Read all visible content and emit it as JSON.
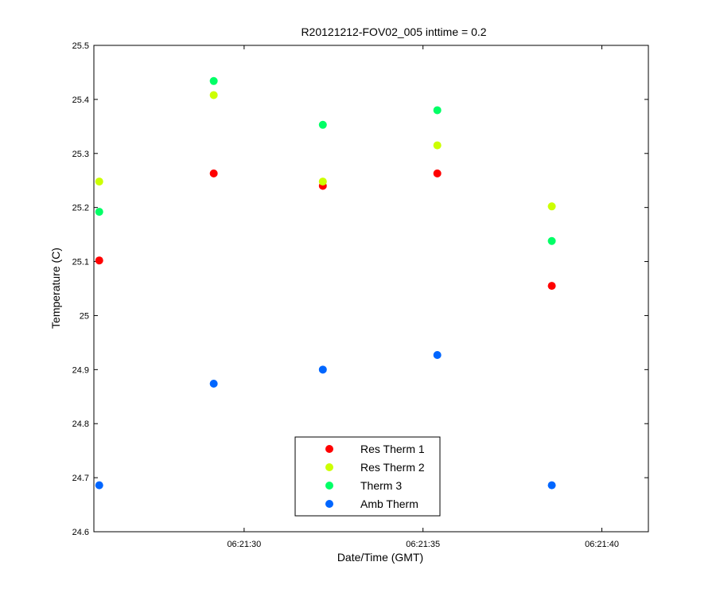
{
  "chart_data": {
    "type": "scatter",
    "title": "R20121212-FOV02_005 inttime = 0.2",
    "xlabel": "Date/Time (GMT)",
    "ylabel": "Temperature (C)",
    "x_unit": "seconds past 06:21:00",
    "xlim": [
      25.8,
      41.3
    ],
    "ylim": [
      24.6,
      25.5
    ],
    "x_ticks": [
      {
        "value": 30,
        "label": "06:21:30"
      },
      {
        "value": 35,
        "label": "06:21:35"
      },
      {
        "value": 40,
        "label": "06:21:40"
      }
    ],
    "y_ticks": [
      {
        "value": 24.6,
        "label": "24.6"
      },
      {
        "value": 24.7,
        "label": "24.7"
      },
      {
        "value": 24.8,
        "label": "24.8"
      },
      {
        "value": 24.9,
        "label": "24.9"
      },
      {
        "value": 25.0,
        "label": "25"
      },
      {
        "value": 25.1,
        "label": "25.1"
      },
      {
        "value": 25.2,
        "label": "25.2"
      },
      {
        "value": 25.3,
        "label": "25.3"
      },
      {
        "value": 25.4,
        "label": "25.4"
      },
      {
        "value": 25.5,
        "label": "25.5"
      }
    ],
    "x": [
      25.95,
      29.15,
      32.2,
      35.4,
      38.6
    ],
    "series": [
      {
        "name": "Res Therm 1",
        "color": "#ff0000",
        "values": [
          25.102,
          25.263,
          25.24,
          25.263,
          25.055
        ]
      },
      {
        "name": "Res Therm 2",
        "color": "#ccff00",
        "values": [
          25.248,
          25.408,
          25.248,
          25.315,
          25.202
        ]
      },
      {
        "name": "Therm 3",
        "color": "#00ff66",
        "values": [
          25.192,
          25.434,
          25.353,
          25.38,
          25.138
        ]
      },
      {
        "name": "Amb Therm",
        "color": "#0066ff",
        "values": [
          24.686,
          24.874,
          24.9,
          24.927,
          24.686
        ]
      }
    ],
    "grid": false,
    "legend_position": "bottom-center"
  }
}
